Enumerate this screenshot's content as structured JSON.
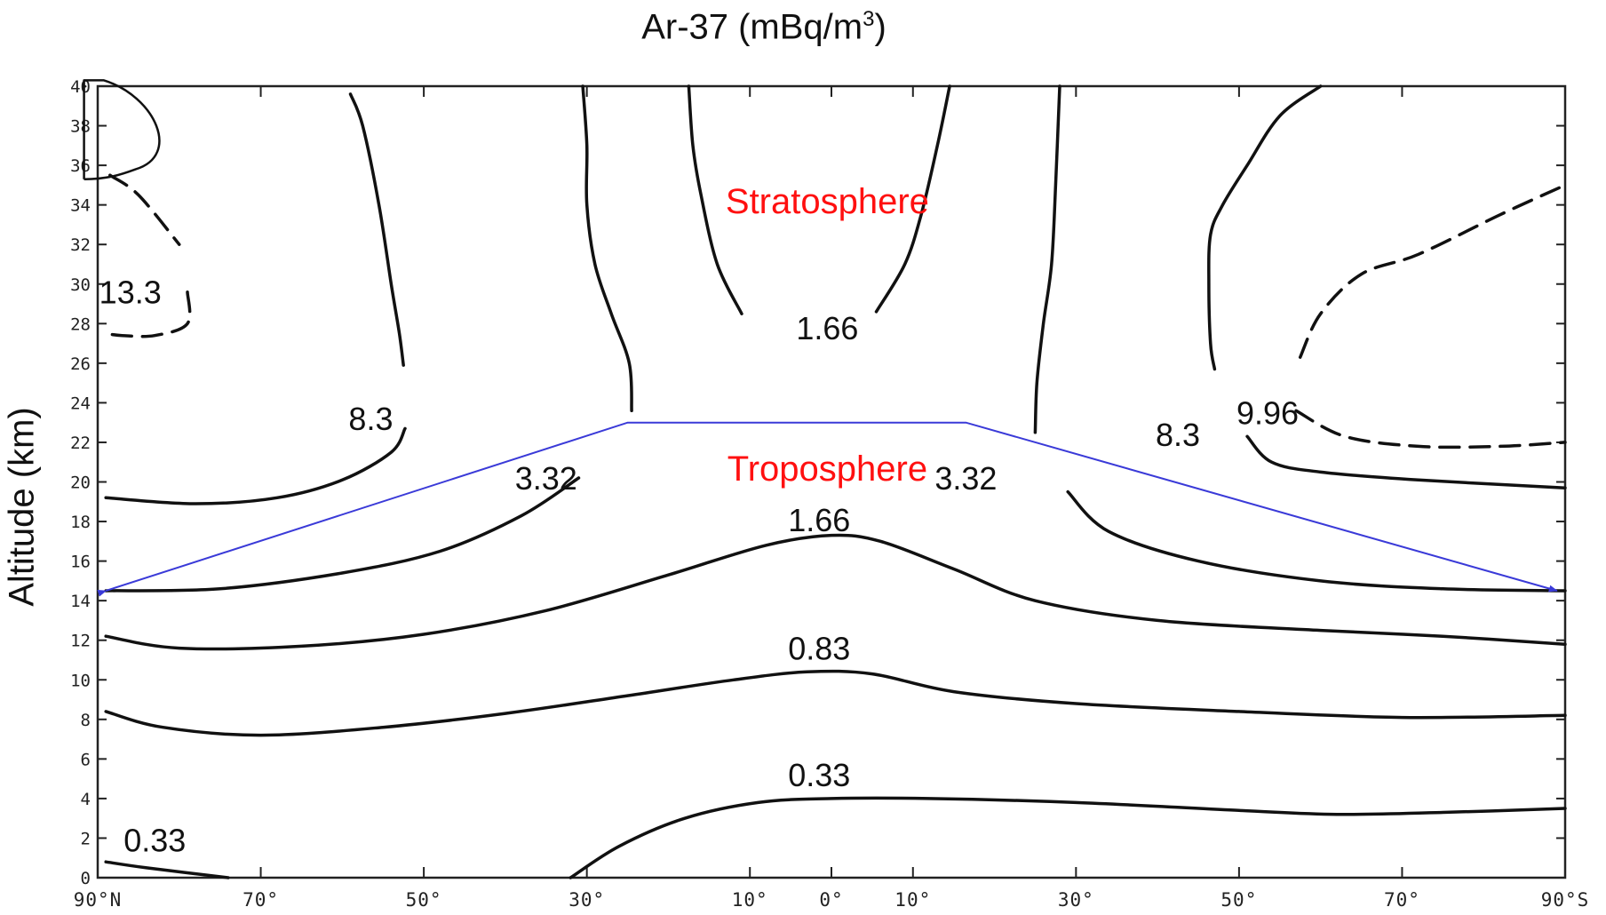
{
  "chart_data": {
    "type": "contour",
    "title_main": "Ar-37 (mBq/m",
    "title_sup": "3",
    "title_tail": ")",
    "ylabel": "Altitude (km)",
    "xlabel": "",
    "ylim": [
      0,
      40
    ],
    "xlim": [
      -90,
      90
    ],
    "y_ticks": [
      "0",
      "2",
      "4",
      "6",
      "8",
      "10",
      "12",
      "14",
      "16",
      "18",
      "20",
      "22",
      "24",
      "26",
      "28",
      "30",
      "32",
      "34",
      "36",
      "38",
      "40"
    ],
    "x_ticks": [
      {
        "value": -90,
        "label": "90°N"
      },
      {
        "value": -70,
        "label": "70°"
      },
      {
        "value": -50,
        "label": "50°"
      },
      {
        "value": -30,
        "label": "30°"
      },
      {
        "value": -10,
        "label": "10°"
      },
      {
        "value": 0,
        "label": "0°"
      },
      {
        "value": 10,
        "label": "10°"
      },
      {
        "value": 30,
        "label": "30°"
      },
      {
        "value": 50,
        "label": "50°"
      },
      {
        "value": 70,
        "label": "70°"
      },
      {
        "value": 90,
        "label": "90°S"
      }
    ],
    "contours": [
      {
        "level": "0.33",
        "dashed": false,
        "points": [
          [
            -89,
            0.8
          ],
          [
            -84,
            0.5
          ],
          [
            -74,
            0
          ]
        ]
      },
      {
        "level": "0.33",
        "dashed": false,
        "points": [
          [
            -32,
            0
          ],
          [
            -26,
            1.6
          ],
          [
            -18,
            3
          ],
          [
            -9,
            3.8
          ],
          [
            0,
            4
          ],
          [
            12,
            4
          ],
          [
            30,
            3.8
          ],
          [
            50,
            3.4
          ],
          [
            62,
            3.2
          ],
          [
            75,
            3.3
          ],
          [
            90,
            3.5
          ]
        ]
      },
      {
        "level": "0.83",
        "dashed": false,
        "points": [
          [
            -89,
            8.4
          ],
          [
            -82,
            7.6
          ],
          [
            -70,
            7.2
          ],
          [
            -55,
            7.6
          ],
          [
            -40,
            8.3
          ],
          [
            -25,
            9.2
          ],
          [
            -12,
            10
          ],
          [
            -3,
            10.4
          ],
          [
            5,
            10.3
          ],
          [
            15,
            9.4
          ],
          [
            30,
            8.8
          ],
          [
            50,
            8.4
          ],
          [
            70,
            8.1
          ],
          [
            90,
            8.2
          ]
        ]
      },
      {
        "level": "1.66",
        "dashed": false,
        "points": [
          [
            -89,
            12.2
          ],
          [
            -80,
            11.6
          ],
          [
            -65,
            11.7
          ],
          [
            -50,
            12.3
          ],
          [
            -35,
            13.5
          ],
          [
            -20,
            15.3
          ],
          [
            -8,
            16.8
          ],
          [
            0,
            17.3
          ],
          [
            6,
            17
          ],
          [
            15,
            15.6
          ],
          [
            25,
            14
          ],
          [
            40,
            13
          ],
          [
            60,
            12.5
          ],
          [
            75,
            12.2
          ],
          [
            90,
            11.8
          ]
        ]
      },
      {
        "level": "1.66",
        "dashed": false,
        "points": [
          [
            -11,
            28.5
          ],
          [
            -14,
            31
          ],
          [
            -16,
            34.5
          ],
          [
            -17,
            37
          ],
          [
            -17.5,
            40
          ]
        ]
      },
      {
        "level": "1.66",
        "dashed": false,
        "points": [
          [
            5.5,
            28.6
          ],
          [
            9,
            31
          ],
          [
            11,
            33.5
          ],
          [
            13,
            37
          ],
          [
            14.5,
            40
          ]
        ]
      },
      {
        "level": "3.32",
        "dashed": false,
        "points": [
          [
            -89,
            14.5
          ],
          [
            -75,
            14.6
          ],
          [
            -60,
            15.4
          ],
          [
            -48,
            16.5
          ],
          [
            -38,
            18.3
          ],
          [
            -31,
            20.2
          ]
        ]
      },
      {
        "level": "3.32",
        "dashed": false,
        "points": [
          [
            -24.5,
            23.6
          ],
          [
            -24.8,
            26
          ],
          [
            -27,
            28.5
          ],
          [
            -29,
            31
          ],
          [
            -30,
            34
          ],
          [
            -30,
            37
          ],
          [
            -30.5,
            40
          ]
        ]
      },
      {
        "level": "3.32",
        "dashed": false,
        "points": [
          [
            29,
            19.5
          ],
          [
            34,
            17.5
          ],
          [
            45,
            16
          ],
          [
            60,
            15
          ],
          [
            75,
            14.6
          ],
          [
            90,
            14.5
          ]
        ]
      },
      {
        "level": "3.32",
        "dashed": false,
        "points": [
          [
            25,
            22.5
          ],
          [
            25.2,
            25
          ],
          [
            26,
            28
          ],
          [
            27,
            31
          ],
          [
            27.5,
            35
          ],
          [
            28,
            40
          ]
        ]
      },
      {
        "level": "8.3",
        "dashed": false,
        "points": [
          [
            -89,
            19.2
          ],
          [
            -78,
            18.9
          ],
          [
            -68,
            19.2
          ],
          [
            -60,
            20.1
          ],
          [
            -54,
            21.5
          ],
          [
            -52.3,
            22.7
          ]
        ]
      },
      {
        "level": "8.3",
        "dashed": false,
        "points": [
          [
            -52.5,
            25.9
          ],
          [
            -53,
            27.5
          ],
          [
            -54,
            30
          ],
          [
            -55.5,
            34
          ],
          [
            -57.5,
            38
          ],
          [
            -59,
            39.6
          ]
        ]
      },
      {
        "level": "8.3",
        "dashed": false,
        "points": [
          [
            51,
            22.3
          ],
          [
            54,
            21
          ],
          [
            60,
            20.5
          ],
          [
            72,
            20.1
          ],
          [
            90,
            19.7
          ]
        ]
      },
      {
        "level": "8.3",
        "dashed": false,
        "points": [
          [
            47,
            25.7
          ],
          [
            46.5,
            27
          ],
          [
            46.3,
            30
          ],
          [
            46.5,
            32.5
          ],
          [
            48,
            34
          ],
          [
            51,
            36
          ],
          [
            55,
            38.5
          ],
          [
            60,
            40
          ]
        ]
      },
      {
        "level": "9.96",
        "dashed": true,
        "points": [
          [
            57,
            23.6
          ],
          [
            63,
            22.3
          ],
          [
            72,
            21.8
          ],
          [
            82,
            21.8
          ],
          [
            90,
            22
          ]
        ]
      },
      {
        "level": "9.96",
        "dashed": true,
        "points": [
          [
            57.5,
            26.3
          ],
          [
            60,
            28.5
          ],
          [
            65,
            30.5
          ],
          [
            72,
            31.5
          ],
          [
            82,
            33.5
          ],
          [
            90,
            35
          ]
        ]
      },
      {
        "level": "13.3",
        "dashed": true,
        "points": [
          [
            -88.5,
            35.5
          ],
          [
            -85,
            34.5
          ],
          [
            -80,
            32
          ]
        ]
      },
      {
        "level": "13.3",
        "dashed": true,
        "points": [
          [
            -79,
            29.6
          ],
          [
            -79,
            28
          ],
          [
            -83,
            27.4
          ],
          [
            -87,
            27.4
          ],
          [
            -89,
            27.5
          ]
        ]
      }
    ],
    "contour_labels": [
      {
        "text": "0.33",
        "x": -83,
        "y": 1.9
      },
      {
        "text": "0.33",
        "x": -1.5,
        "y": 5.2
      },
      {
        "text": "0.83",
        "x": -1.5,
        "y": 11.6
      },
      {
        "text": "1.66",
        "x": -1.5,
        "y": 18.1
      },
      {
        "text": "1.66",
        "x": -0.5,
        "y": 27.8
      },
      {
        "text": "3.32",
        "x": -35,
        "y": 20.2
      },
      {
        "text": "3.32",
        "x": 16.5,
        "y": 20.2
      },
      {
        "text": "8.3",
        "x": -56.5,
        "y": 23.2
      },
      {
        "text": "8.3",
        "x": 42.5,
        "y": 22.4
      },
      {
        "text": "9.96",
        "x": 53.5,
        "y": 23.5
      },
      {
        "text": "13.3",
        "x": -86,
        "y": 29.6
      }
    ],
    "region_labels": [
      {
        "text": "Stratosphere",
        "x": -0.5,
        "y": 34.2
      },
      {
        "text": "Troposphere",
        "x": -0.5,
        "y": 20.7
      }
    ],
    "tropopause_line": {
      "color": "#3a3ad8",
      "points": [
        [
          -89,
          14.5
        ],
        [
          -25,
          23
        ],
        [
          16.5,
          23
        ],
        [
          89,
          14.5
        ]
      ]
    },
    "corner_annotation": {
      "color": "#111111"
    }
  }
}
